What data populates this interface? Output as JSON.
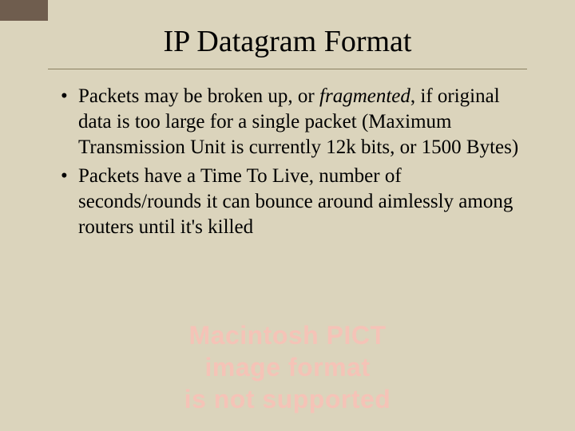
{
  "title": "IP Datagram Format",
  "bullets": {
    "item1": {
      "pre": "Packets may be broken up, or ",
      "emph": "fragmented",
      "post": ", if original data is too large for a single packet (Maximum Transmission Unit is currently 12k bits, or 1500 Bytes)"
    },
    "item2": "Packets have a Time To Live, number of seconds/rounds it can bounce around aimlessly among routers until it's killed"
  },
  "pict": {
    "line1": "Macintosh PICT",
    "line2": "image format",
    "line3": "is not supported"
  },
  "colors": {
    "background": "#dbd4bc",
    "corner": "#6f5d4e",
    "divider": "#8a8060",
    "text": "#000000",
    "pict_text": "#f5c3b7"
  },
  "typography": {
    "title_fontsize": 38,
    "body_fontsize": 25,
    "pict_fontsize": 32,
    "body_font": "Times New Roman",
    "pict_font": "Arial"
  }
}
